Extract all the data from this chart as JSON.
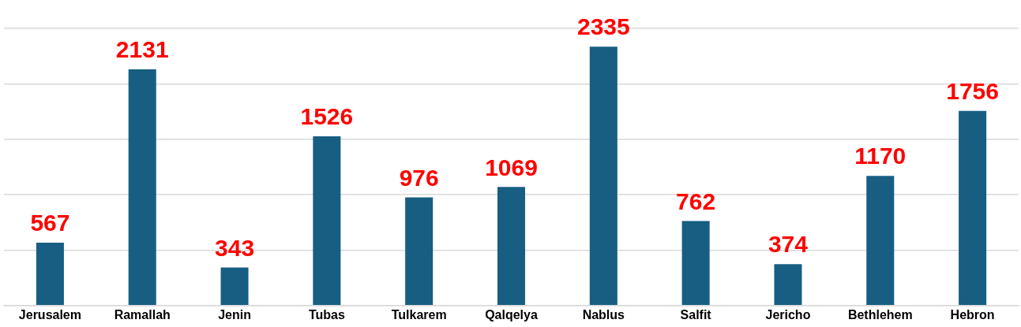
{
  "chart_data": {
    "type": "bar",
    "categories": [
      "Jerusalem",
      "Ramallah",
      "Jenin",
      "Tubas",
      "Tulkarem",
      "Qalqelya",
      "Nablus",
      "Salfit",
      "Jericho",
      "Bethlehem",
      "Hebron"
    ],
    "values": [
      567,
      2131,
      343,
      1526,
      976,
      1069,
      2335,
      762,
      374,
      1170,
      1756
    ],
    "color": "#175e82",
    "ylim": [
      0,
      2500
    ],
    "yticks": [
      {
        "value": 0,
        "label": null
      },
      {
        "value": 500,
        "label": null
      },
      {
        "value": 1000,
        "label": null
      },
      {
        "value": 1500,
        "label": null
      },
      {
        "value": 2000,
        "label": null
      },
      {
        "value": 2500,
        "label": null
      }
    ],
    "grid": "y",
    "tick_labels": "x",
    "data_labels": true,
    "legend": false
  }
}
